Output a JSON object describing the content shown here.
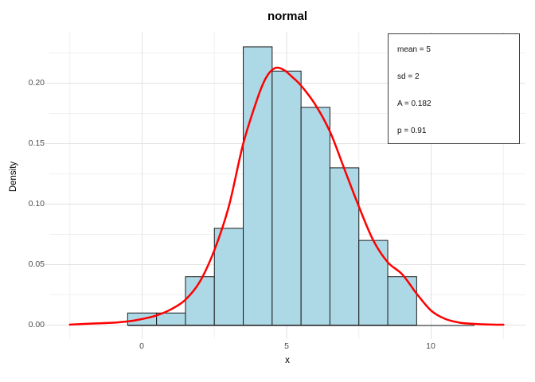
{
  "figure": {
    "title": "normal",
    "x_label": "x",
    "y_label": "Density"
  },
  "legend": {
    "lines": [
      {
        "text": "mean = 5"
      },
      {
        "text": "sd = 2"
      },
      {
        "text": "A = 0.182"
      },
      {
        "text": "p = 0.91"
      }
    ]
  },
  "chart_data": {
    "type": "histogram",
    "title": "normal",
    "xlabel": "x",
    "ylabel": "Density",
    "xlim": [
      -3.2,
      13.2
    ],
    "ylim": [
      -0.012,
      0.245
    ],
    "grid": true,
    "bin_width": 1,
    "bin_centers": [
      0,
      1,
      2,
      3,
      4,
      5,
      6,
      7,
      8,
      9
    ],
    "bin_heights": [
      0.01,
      0.01,
      0.04,
      0.08,
      0.23,
      0.21,
      0.18,
      0.13,
      0.07,
      0.04
    ],
    "baseline_extent": [
      -0.5,
      11.5
    ],
    "x_ticks": {
      "major": [
        {
          "value": 0,
          "label": "0"
        },
        {
          "value": 5,
          "label": "5"
        },
        {
          "value": 10,
          "label": "10"
        }
      ],
      "minor_values": [
        -2.5,
        2.5,
        7.5,
        12.5
      ]
    },
    "y_ticks": {
      "major": [
        {
          "value": 0.0,
          "label": "0.00"
        },
        {
          "value": 0.05,
          "label": "0.05"
        },
        {
          "value": 0.1,
          "label": "0.10"
        },
        {
          "value": 0.15,
          "label": "0.15"
        },
        {
          "value": 0.2,
          "label": "0.20"
        }
      ],
      "minor_values": [
        0.025,
        0.075,
        0.125,
        0.175,
        0.225
      ]
    },
    "overlay_curve": {
      "name": "density",
      "x": [
        -2.5,
        -2,
        -1.5,
        -1,
        -0.5,
        0,
        0.5,
        1,
        1.5,
        2,
        2.5,
        3,
        3.5,
        4,
        4.3,
        4.6,
        4.9,
        5.2,
        5.5,
        6,
        6.5,
        7,
        7.5,
        8,
        8.5,
        9,
        9.5,
        10,
        10.5,
        11,
        11.5,
        12,
        12.5
      ],
      "y": [
        0.0004,
        0.001,
        0.0015,
        0.002,
        0.003,
        0.005,
        0.008,
        0.013,
        0.021,
        0.036,
        0.062,
        0.098,
        0.15,
        0.188,
        0.205,
        0.2125,
        0.211,
        0.205,
        0.198,
        0.182,
        0.16,
        0.129,
        0.098,
        0.07,
        0.052,
        0.042,
        0.026,
        0.012,
        0.005,
        0.002,
        0.001,
        0.0005,
        0.0003
      ]
    },
    "annotations": [
      "mean = 5",
      "sd = 2",
      "A = 0.182",
      "p = 0.91"
    ],
    "legend_position": "top-right",
    "colors": {
      "bar_fill": "#ADD8E6",
      "bar_stroke": "#1A1A1A",
      "curve": "#FF0000",
      "grid_major": "#E2E2E2",
      "grid_minor": "#F0F0F0",
      "tick_label": "#4D4D4D",
      "legend_border": "#3F3F3F"
    }
  }
}
